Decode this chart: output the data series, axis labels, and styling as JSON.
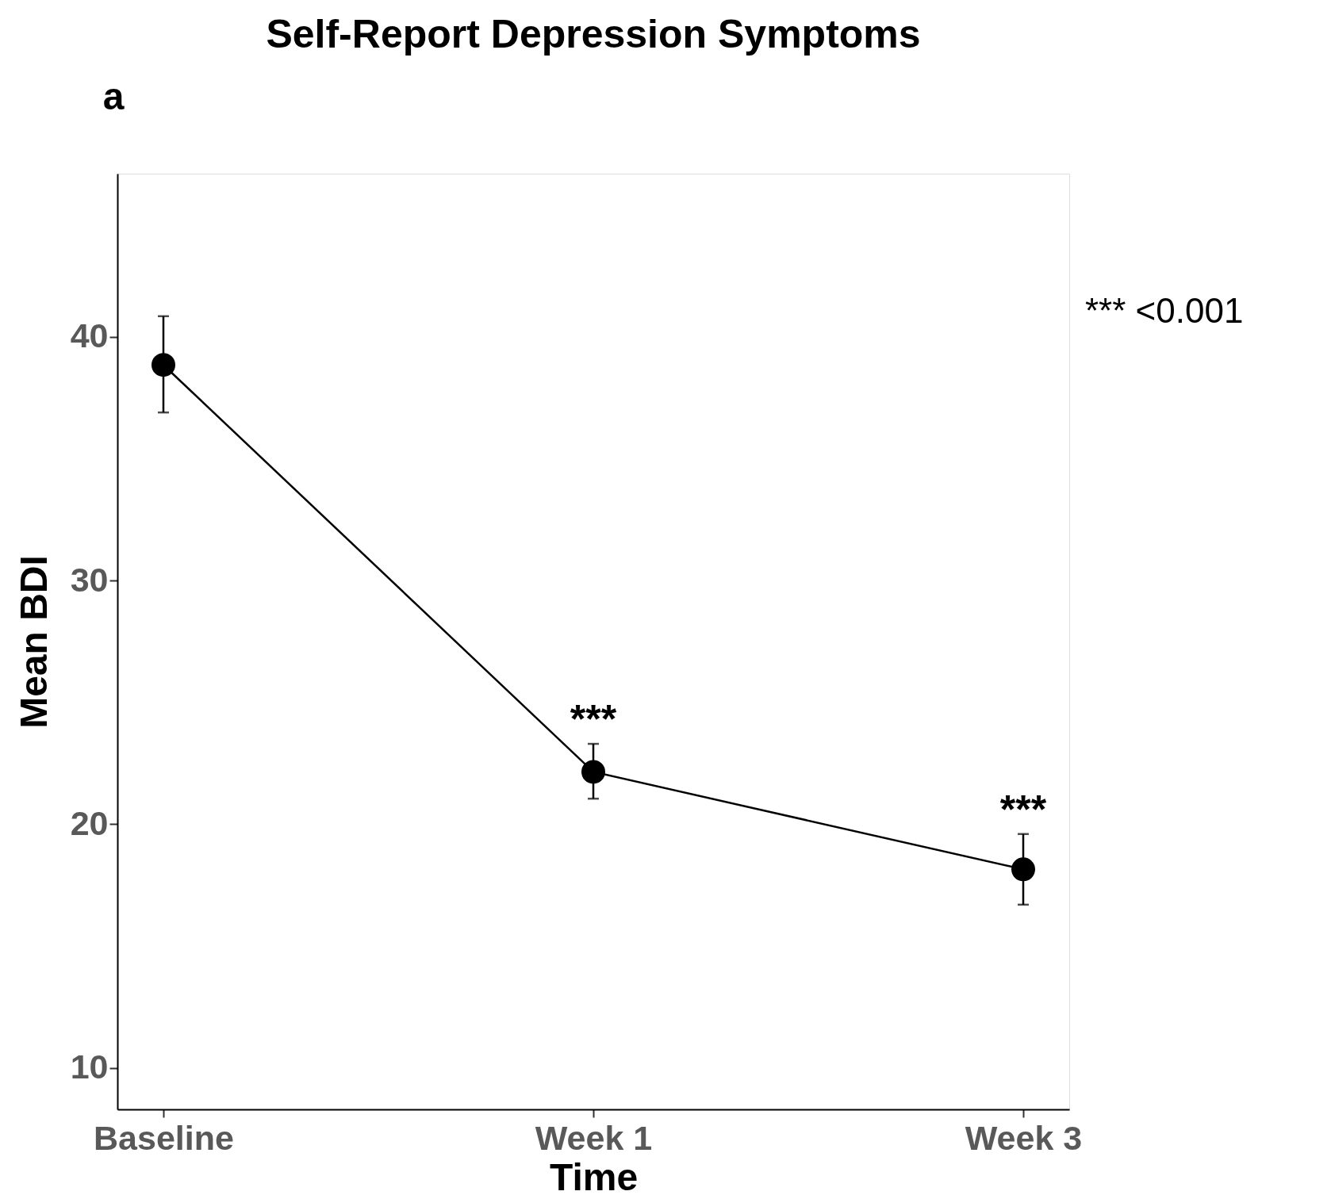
{
  "chart_data": {
    "type": "line",
    "title": "Self-Report Depression Symptoms",
    "xlabel": "Time",
    "ylabel": "Mean BDI",
    "categories": [
      "Baseline",
      "Week 1",
      "Week 3"
    ],
    "series": [
      {
        "color": "#000000",
        "values": [
          38.85,
          22.15,
          18.15
        ],
        "errors": [
          [
            36.9,
            40.85
          ],
          [
            21.05,
            23.3
          ],
          [
            16.7,
            19.6
          ]
        ]
      }
    ],
    "ylim": [
      8.3,
      46.7
    ],
    "yticks": [
      10,
      20,
      30,
      40
    ],
    "grid": false,
    "marker": "circle",
    "line_style": "solid",
    "annotations": [
      "a",
      "***",
      "***",
      "*** <0.001"
    ]
  }
}
